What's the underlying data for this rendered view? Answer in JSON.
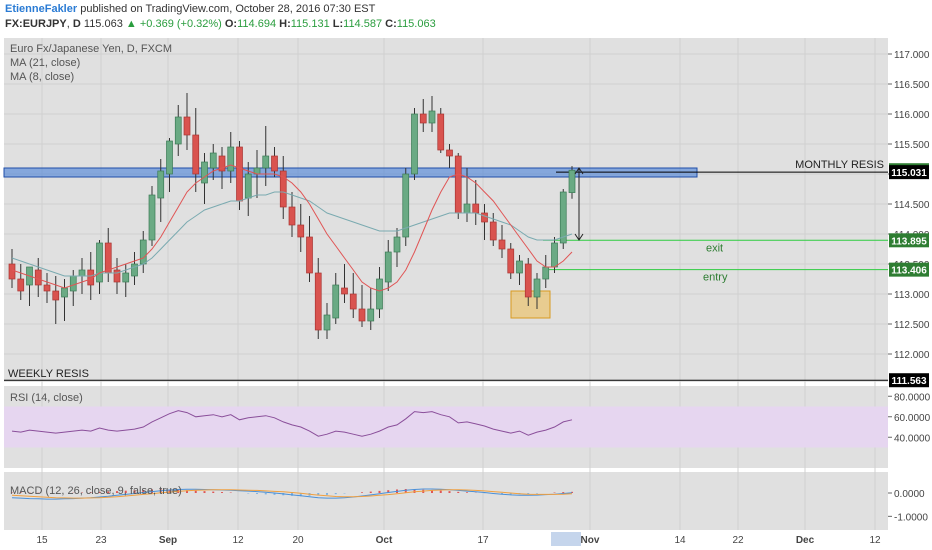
{
  "header": {
    "author": "EtienneFakler",
    "published": "published on TradingView.com, October 28, 2016 07:30 EST",
    "symbol": "FX:EURJPY",
    "interval": "D",
    "last": "115.063",
    "change": "+0.369 (+0.32%)",
    "o_label": "O:",
    "o": "114.694",
    "h_label": "H:",
    "h": "115.131",
    "l_label": "L:",
    "l": "114.587",
    "c_label": "C:",
    "c": "115.063"
  },
  "legend": {
    "instrument": "Euro Fx/Japanese Yen, D, FXCM",
    "ma21": "MA (21, close)",
    "ma8": "MA (8, close)",
    "rsi": "RSI (14, close)",
    "macd": "MACD (12, 26, close, 9, false, true)"
  },
  "annotations": {
    "monthly": "MONTHLY RESIS",
    "weekly": "WEEKLY RESIS",
    "exit": "exit",
    "entry": "entry"
  },
  "price_axis": {
    "ticks": [
      "117.000",
      "116.500",
      "116.000",
      "115.500",
      "115.000",
      "114.500",
      "114.000",
      "113.500",
      "113.000",
      "112.500",
      "112.000"
    ],
    "badges": [
      {
        "text": "115.063",
        "kind": "last",
        "color": "#2e7d32"
      },
      {
        "text": "115.031",
        "kind": "level",
        "color": "#000000"
      },
      {
        "text": "113.895",
        "kind": "level",
        "color": "#2e7d32"
      },
      {
        "text": "113.406",
        "kind": "level",
        "color": "#2e7d32"
      },
      {
        "text": "111.563",
        "kind": "level",
        "color": "#000000"
      }
    ]
  },
  "rsi_axis": {
    "ticks": [
      "80.0000",
      "60.0000",
      "40.0000"
    ]
  },
  "macd_axis": {
    "ticks": [
      "0.0000",
      "-1.0000"
    ]
  },
  "time_axis": {
    "labels": [
      "15",
      "23",
      "Sep",
      "12",
      "20",
      "Oct",
      "17",
      "Nov",
      "14",
      "22",
      "Dec",
      "12"
    ]
  },
  "colors": {
    "up": "#6aaa84",
    "down": "#d9534f",
    "ma21": "#7aaab0",
    "ma8": "#e05555",
    "zone": "#3a78d8",
    "highlight": "#f0b840",
    "green_line": "#2ecc40",
    "rsi_band": "#e6d6f0",
    "rsi_line": "#8a4f9a",
    "macd_hist": "#e05555",
    "macd_line": "#4a90d9",
    "signal": "#f0a040"
  },
  "chart_data": {
    "type": "candlestick",
    "title": "Euro Fx/Japanese Yen, D, FXCM",
    "price_range": [
      111.6,
      117.2
    ],
    "levels": {
      "monthly_resis_zone": [
        114.95,
        115.1
      ],
      "monthly_resis": 115.031,
      "weekly_resis": 111.563,
      "exit": 113.895,
      "entry": 113.406,
      "buy_zone": [
        112.6,
        113.05
      ]
    },
    "candles": [
      {
        "o": 113.5,
        "h": 113.75,
        "l": 113.1,
        "c": 113.25
      },
      {
        "o": 113.25,
        "h": 113.5,
        "l": 112.9,
        "c": 113.05
      },
      {
        "o": 113.15,
        "h": 113.45,
        "l": 112.8,
        "c": 113.45
      },
      {
        "o": 113.4,
        "h": 113.6,
        "l": 112.95,
        "c": 113.15
      },
      {
        "o": 113.15,
        "h": 113.35,
        "l": 112.85,
        "c": 113.05
      },
      {
        "o": 113.05,
        "h": 113.3,
        "l": 112.5,
        "c": 112.9
      },
      {
        "o": 112.95,
        "h": 113.25,
        "l": 112.55,
        "c": 113.1
      },
      {
        "o": 113.05,
        "h": 113.4,
        "l": 112.8,
        "c": 113.3
      },
      {
        "o": 113.3,
        "h": 113.6,
        "l": 113.0,
        "c": 113.4
      },
      {
        "o": 113.4,
        "h": 113.7,
        "l": 112.9,
        "c": 113.15
      },
      {
        "o": 113.2,
        "h": 113.9,
        "l": 113.0,
        "c": 113.85
      },
      {
        "o": 113.85,
        "h": 114.1,
        "l": 113.2,
        "c": 113.35
      },
      {
        "o": 113.4,
        "h": 113.6,
        "l": 113.0,
        "c": 113.2
      },
      {
        "o": 113.2,
        "h": 113.5,
        "l": 112.95,
        "c": 113.35
      },
      {
        "o": 113.3,
        "h": 113.7,
        "l": 113.15,
        "c": 113.5
      },
      {
        "o": 113.5,
        "h": 114.05,
        "l": 113.35,
        "c": 113.9
      },
      {
        "o": 113.9,
        "h": 114.8,
        "l": 113.8,
        "c": 114.65
      },
      {
        "o": 114.6,
        "h": 115.25,
        "l": 114.2,
        "c": 115.05
      },
      {
        "o": 115.0,
        "h": 115.6,
        "l": 114.7,
        "c": 115.55
      },
      {
        "o": 115.5,
        "h": 116.15,
        "l": 115.3,
        "c": 115.95
      },
      {
        "o": 115.95,
        "h": 116.35,
        "l": 115.4,
        "c": 115.65
      },
      {
        "o": 115.65,
        "h": 116.1,
        "l": 114.7,
        "c": 115.0
      },
      {
        "o": 114.85,
        "h": 115.35,
        "l": 114.5,
        "c": 115.2
      },
      {
        "o": 115.1,
        "h": 115.5,
        "l": 114.9,
        "c": 115.35
      },
      {
        "o": 115.3,
        "h": 115.45,
        "l": 114.75,
        "c": 115.05
      },
      {
        "o": 115.05,
        "h": 115.7,
        "l": 114.85,
        "c": 115.45
      },
      {
        "o": 115.45,
        "h": 115.55,
        "l": 114.4,
        "c": 114.55
      },
      {
        "o": 114.6,
        "h": 115.2,
        "l": 114.3,
        "c": 115.0
      },
      {
        "o": 115.0,
        "h": 115.4,
        "l": 114.6,
        "c": 115.1
      },
      {
        "o": 115.1,
        "h": 115.8,
        "l": 114.8,
        "c": 115.3
      },
      {
        "o": 115.3,
        "h": 115.45,
        "l": 114.95,
        "c": 115.05
      },
      {
        "o": 115.05,
        "h": 115.3,
        "l": 114.25,
        "c": 114.45
      },
      {
        "o": 114.45,
        "h": 114.7,
        "l": 113.95,
        "c": 114.15
      },
      {
        "o": 114.15,
        "h": 114.5,
        "l": 113.7,
        "c": 113.95
      },
      {
        "o": 113.95,
        "h": 114.3,
        "l": 113.2,
        "c": 113.35
      },
      {
        "o": 113.35,
        "h": 113.6,
        "l": 112.25,
        "c": 112.4
      },
      {
        "o": 112.4,
        "h": 112.85,
        "l": 112.25,
        "c": 112.65
      },
      {
        "o": 112.6,
        "h": 113.35,
        "l": 112.5,
        "c": 113.15
      },
      {
        "o": 113.1,
        "h": 113.5,
        "l": 112.85,
        "c": 113.0
      },
      {
        "o": 113.0,
        "h": 113.35,
        "l": 112.6,
        "c": 112.75
      },
      {
        "o": 112.75,
        "h": 113.15,
        "l": 112.45,
        "c": 112.55
      },
      {
        "o": 112.55,
        "h": 113.1,
        "l": 112.4,
        "c": 112.75
      },
      {
        "o": 112.75,
        "h": 113.45,
        "l": 112.6,
        "c": 113.25
      },
      {
        "o": 113.2,
        "h": 113.9,
        "l": 113.05,
        "c": 113.7
      },
      {
        "o": 113.7,
        "h": 114.1,
        "l": 113.45,
        "c": 113.95
      },
      {
        "o": 113.95,
        "h": 115.1,
        "l": 113.8,
        "c": 115.0
      },
      {
        "o": 115.0,
        "h": 116.1,
        "l": 114.9,
        "c": 116.0
      },
      {
        "o": 116.0,
        "h": 116.25,
        "l": 115.7,
        "c": 115.85
      },
      {
        "o": 115.85,
        "h": 116.3,
        "l": 115.7,
        "c": 116.05
      },
      {
        "o": 116.0,
        "h": 116.1,
        "l": 115.35,
        "c": 115.4
      },
      {
        "o": 115.4,
        "h": 115.5,
        "l": 115.1,
        "c": 115.3
      },
      {
        "o": 115.3,
        "h": 115.35,
        "l": 114.25,
        "c": 114.35
      },
      {
        "o": 114.35,
        "h": 115.1,
        "l": 114.2,
        "c": 114.5
      },
      {
        "o": 114.5,
        "h": 114.9,
        "l": 114.15,
        "c": 114.35
      },
      {
        "o": 114.35,
        "h": 114.5,
        "l": 113.9,
        "c": 114.2
      },
      {
        "o": 114.2,
        "h": 114.35,
        "l": 113.8,
        "c": 113.9
      },
      {
        "o": 113.9,
        "h": 114.15,
        "l": 113.6,
        "c": 113.75
      },
      {
        "o": 113.75,
        "h": 113.85,
        "l": 113.25,
        "c": 113.35
      },
      {
        "o": 113.35,
        "h": 113.65,
        "l": 113.15,
        "c": 113.55
      },
      {
        "o": 113.5,
        "h": 113.6,
        "l": 112.8,
        "c": 112.95
      },
      {
        "o": 112.95,
        "h": 113.35,
        "l": 112.75,
        "c": 113.25
      },
      {
        "o": 113.25,
        "h": 113.65,
        "l": 113.1,
        "c": 113.45
      },
      {
        "o": 113.45,
        "h": 113.95,
        "l": 113.35,
        "c": 113.85
      },
      {
        "o": 113.85,
        "h": 114.75,
        "l": 113.75,
        "c": 114.7
      },
      {
        "o": 114.69,
        "h": 115.131,
        "l": 114.587,
        "c": 115.063
      }
    ],
    "ma21": [
      113.6,
      113.55,
      113.5,
      113.45,
      113.4,
      113.35,
      113.3,
      113.3,
      113.3,
      113.3,
      113.35,
      113.35,
      113.35,
      113.4,
      113.45,
      113.5,
      113.6,
      113.75,
      113.9,
      114.05,
      114.2,
      114.3,
      114.4,
      114.45,
      114.5,
      114.55,
      114.55,
      114.6,
      114.65,
      114.65,
      114.7,
      114.7,
      114.65,
      114.6,
      114.55,
      114.45,
      114.35,
      114.3,
      114.25,
      114.2,
      114.15,
      114.1,
      114.05,
      114.05,
      114.05,
      114.1,
      114.15,
      114.2,
      114.25,
      114.3,
      114.35,
      114.35,
      114.35,
      114.35,
      114.3,
      114.25,
      114.2,
      114.15,
      114.05,
      113.95,
      113.9,
      113.9,
      113.9,
      113.95,
      114.0
    ],
    "ma8": [
      113.4,
      113.35,
      113.3,
      113.25,
      113.2,
      113.15,
      113.1,
      113.15,
      113.2,
      113.25,
      113.35,
      113.4,
      113.45,
      113.5,
      113.55,
      113.6,
      113.75,
      113.95,
      114.2,
      114.45,
      114.7,
      114.85,
      114.95,
      115.05,
      115.1,
      115.15,
      115.1,
      115.05,
      115.0,
      115.0,
      115.0,
      114.95,
      114.85,
      114.7,
      114.5,
      114.25,
      114.0,
      113.8,
      113.6,
      113.4,
      113.2,
      113.1,
      113.05,
      113.1,
      113.2,
      113.4,
      113.7,
      114.05,
      114.4,
      114.7,
      114.95,
      115.0,
      114.95,
      114.85,
      114.7,
      114.55,
      114.35,
      114.15,
      113.95,
      113.75,
      113.55,
      113.45,
      113.45,
      113.55,
      113.7
    ],
    "rsi": [
      46,
      45,
      47,
      46,
      45,
      44,
      45,
      46,
      47,
      46,
      49,
      47,
      46,
      47,
      48,
      50,
      55,
      59,
      63,
      66,
      64,
      60,
      61,
      62,
      60,
      62,
      57,
      59,
      60,
      61,
      59,
      55,
      52,
      50,
      46,
      41,
      43,
      46,
      45,
      43,
      41,
      43,
      46,
      50,
      52,
      58,
      65,
      64,
      65,
      62,
      60,
      54,
      55,
      53,
      51,
      48,
      46,
      44,
      46,
      42,
      45,
      47,
      50,
      55,
      57
    ],
    "macd": {
      "hist": [
        0.02,
        0.03,
        0.02,
        0.01,
        0.0,
        -0.01,
        0.0,
        0.01,
        0.02,
        0.03,
        0.05,
        0.06,
        0.08,
        0.1,
        0.12,
        0.13,
        0.15,
        0.16,
        0.15,
        0.14,
        0.12,
        0.1,
        0.08,
        0.06,
        0.04,
        0.02,
        0.0,
        -0.02,
        -0.04,
        -0.06,
        -0.08,
        -0.1,
        -0.12,
        -0.14,
        -0.12,
        -0.1,
        -0.08,
        -0.05,
        -0.02,
        0.0,
        0.03,
        0.06,
        0.09,
        0.12,
        0.15,
        0.17,
        0.16,
        0.14,
        0.12,
        0.1,
        0.08,
        0.05,
        0.03,
        0.01,
        -0.01,
        -0.03,
        -0.05,
        -0.06,
        -0.05,
        -0.04,
        -0.02,
        0.0,
        0.02,
        0.04,
        0.05
      ],
      "macd": [
        -0.2,
        -0.22,
        -0.24,
        -0.25,
        -0.26,
        -0.26,
        -0.25,
        -0.24,
        -0.22,
        -0.2,
        -0.17,
        -0.14,
        -0.1,
        -0.06,
        -0.02,
        0.02,
        0.06,
        0.1,
        0.13,
        0.15,
        0.16,
        0.16,
        0.15,
        0.14,
        0.13,
        0.12,
        0.1,
        0.08,
        0.06,
        0.03,
        0.0,
        -0.04,
        -0.08,
        -0.12,
        -0.16,
        -0.2,
        -0.22,
        -0.22,
        -0.2,
        -0.17,
        -0.13,
        -0.08,
        -0.03,
        0.02,
        0.07,
        0.12,
        0.15,
        0.17,
        0.17,
        0.16,
        0.14,
        0.11,
        0.08,
        0.05,
        0.02,
        -0.02,
        -0.05,
        -0.08,
        -0.1,
        -0.1,
        -0.09,
        -0.07,
        -0.05,
        -0.02,
        0.01
      ],
      "signal": [
        -0.1,
        -0.12,
        -0.14,
        -0.16,
        -0.18,
        -0.2,
        -0.21,
        -0.22,
        -0.22,
        -0.21,
        -0.2,
        -0.18,
        -0.16,
        -0.13,
        -0.1,
        -0.06,
        -0.03,
        0.01,
        0.04,
        0.07,
        0.1,
        0.12,
        0.13,
        0.14,
        0.14,
        0.14,
        0.13,
        0.12,
        0.11,
        0.09,
        0.07,
        0.05,
        0.02,
        -0.01,
        -0.05,
        -0.09,
        -0.12,
        -0.15,
        -0.16,
        -0.16,
        -0.15,
        -0.13,
        -0.1,
        -0.07,
        -0.03,
        0.01,
        0.05,
        0.08,
        0.11,
        0.13,
        0.14,
        0.14,
        0.13,
        0.11,
        0.09,
        0.06,
        0.03,
        0.0,
        -0.03,
        -0.05,
        -0.06,
        -0.06,
        -0.06,
        -0.05,
        -0.03
      ]
    }
  }
}
